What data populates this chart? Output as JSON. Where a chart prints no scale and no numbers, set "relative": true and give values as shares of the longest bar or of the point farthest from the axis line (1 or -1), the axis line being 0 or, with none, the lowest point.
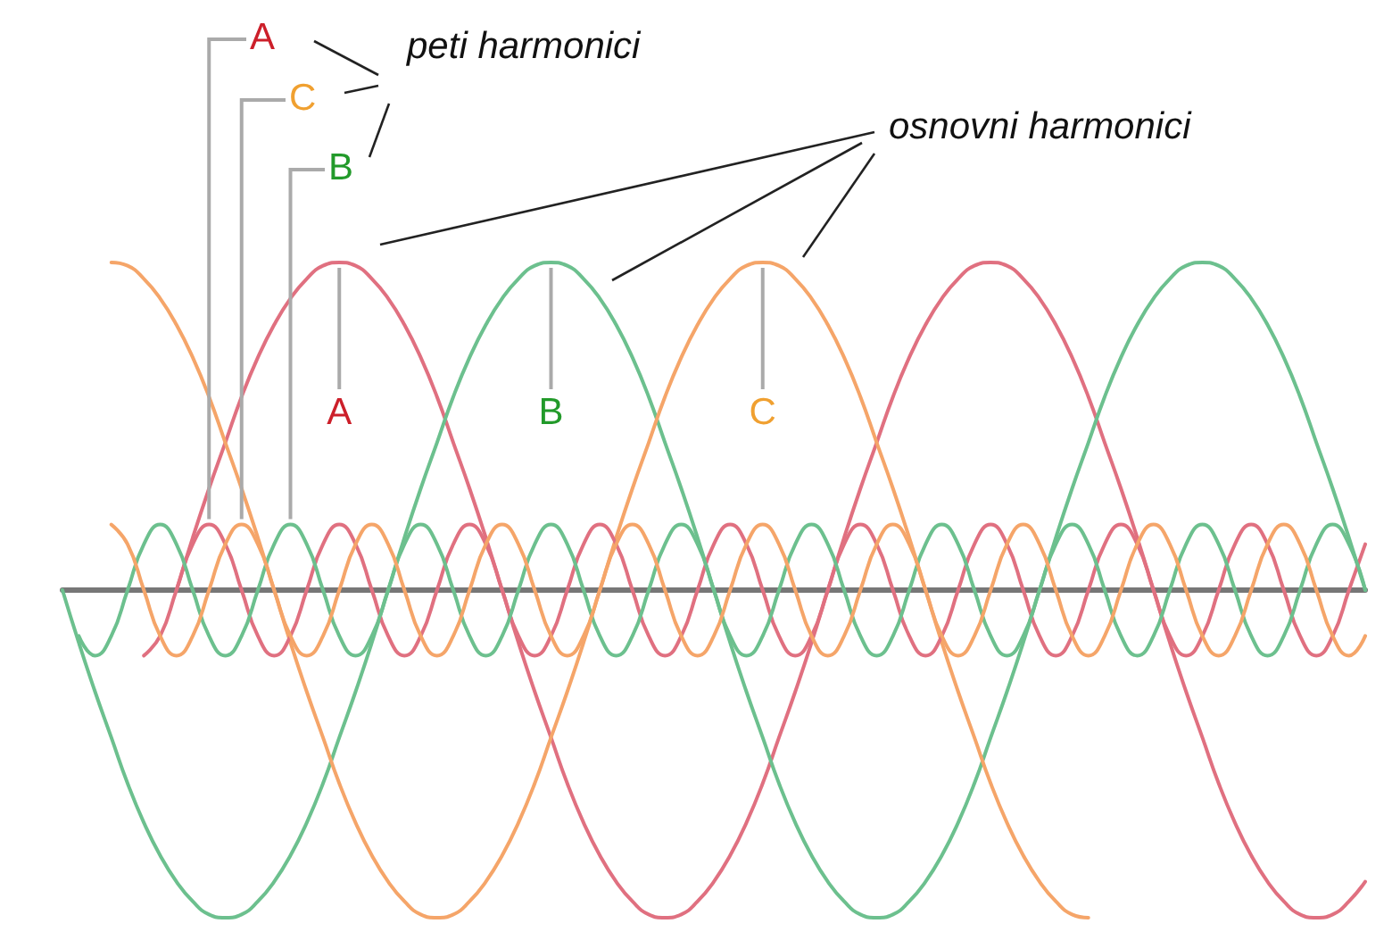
{
  "chart_data": {
    "type": "line",
    "relative": true,
    "categories": [
      null,
      null,
      null,
      null,
      null,
      null,
      null,
      null,
      null,
      null,
      null,
      null,
      null,
      null,
      null,
      null,
      null,
      null,
      null,
      null,
      null,
      null,
      null,
      null,
      null,
      null,
      null,
      null,
      null,
      null,
      null,
      null,
      null,
      null,
      null,
      null,
      null,
      null,
      null,
      null,
      null,
      null,
      null,
      null,
      null,
      null,
      null,
      null,
      null,
      null,
      null,
      null,
      null,
      null,
      null,
      null,
      null,
      null,
      null,
      null,
      null,
      null,
      null,
      null,
      null,
      null,
      null,
      null,
      null,
      null,
      null,
      null,
      null,
      null,
      null,
      null,
      null,
      null,
      null,
      null,
      null
    ],
    "series": [
      {
        "color": "#e07080",
        "values": [
          null,
          null,
          null,
          null,
          null,
          null,
          null,
          0,
          0.16,
          0.31,
          0.45,
          0.59,
          0.71,
          0.81,
          0.89,
          0.95,
          0.99,
          1,
          0.99,
          0.95,
          0.89,
          0.81,
          0.71,
          0.59,
          0.45,
          0.31,
          0.16,
          0,
          -0.16,
          -0.31,
          -0.45,
          -0.59,
          -0.71,
          -0.81,
          -0.89,
          -0.95,
          -0.99,
          -1,
          -0.99,
          -0.95,
          -0.89,
          -0.81,
          -0.71,
          -0.59,
          -0.45,
          -0.31,
          -0.16,
          0,
          0.16,
          0.31,
          0.45,
          0.59,
          0.71,
          0.81,
          0.89,
          0.95,
          0.99,
          1,
          0.99,
          0.95,
          0.89,
          0.81,
          0.71,
          0.59,
          0.45,
          0.31,
          0.16,
          0,
          -0.16,
          -0.31,
          -0.45,
          -0.59,
          -0.71,
          -0.81,
          -0.89,
          -0.95,
          -0.99,
          -1,
          -0.99,
          -0.95,
          -0.89
        ]
      },
      {
        "color": "#6cc08e",
        "values": [
          0,
          -0.16,
          -0.31,
          -0.45,
          -0.59,
          -0.71,
          -0.81,
          -0.89,
          -0.95,
          -0.99,
          -1,
          -0.99,
          -0.95,
          -0.89,
          -0.81,
          -0.71,
          -0.59,
          -0.45,
          -0.31,
          -0.16,
          0,
          0.16,
          0.31,
          0.45,
          0.59,
          0.71,
          0.81,
          0.89,
          0.95,
          0.99,
          1,
          0.99,
          0.95,
          0.89,
          0.81,
          0.71,
          0.59,
          0.45,
          0.31,
          0.16,
          0,
          -0.16,
          -0.31,
          -0.45,
          -0.59,
          -0.71,
          -0.81,
          -0.89,
          -0.95,
          -0.99,
          -1,
          -0.99,
          -0.95,
          -0.89,
          -0.81,
          -0.71,
          -0.59,
          -0.45,
          -0.31,
          -0.16,
          0,
          0.16,
          0.31,
          0.45,
          0.59,
          0.71,
          0.81,
          0.89,
          0.95,
          0.99,
          1,
          0.99,
          0.95,
          0.89,
          0.81,
          0.71,
          0.59,
          0.45,
          0.31,
          0.16,
          0
        ]
      },
      {
        "color": "#f5a569",
        "values": [
          null,
          null,
          null,
          1,
          0.99,
          0.95,
          0.89,
          0.81,
          0.71,
          0.59,
          0.45,
          0.31,
          0.16,
          0,
          -0.16,
          -0.31,
          -0.45,
          -0.59,
          -0.71,
          -0.81,
          -0.89,
          -0.95,
          -0.99,
          -1,
          -0.99,
          -0.95,
          -0.89,
          -0.81,
          -0.71,
          -0.59,
          -0.45,
          -0.31,
          -0.16,
          0,
          0.16,
          0.31,
          0.45,
          0.59,
          0.71,
          0.81,
          0.89,
          0.95,
          0.99,
          1,
          0.99,
          0.95,
          0.89,
          0.81,
          0.71,
          0.59,
          0.45,
          0.31,
          0.16,
          0,
          -0.16,
          -0.31,
          -0.45,
          -0.59,
          -0.71,
          -0.81,
          -0.89,
          -0.95,
          -0.99,
          -1,
          null,
          null,
          null,
          null,
          null,
          null,
          null,
          null,
          null,
          null,
          null,
          null,
          null,
          null,
          null,
          null,
          null
        ]
      },
      {
        "color": "#e07080",
        "values": [
          null,
          null,
          null,
          null,
          null,
          -0.2,
          -0.14,
          0,
          0.14,
          0.2,
          0.14,
          0,
          -0.14,
          -0.2,
          -0.14,
          0,
          0.14,
          0.2,
          0.14,
          0,
          -0.14,
          -0.2,
          -0.14,
          0,
          0.14,
          0.2,
          0.14,
          0,
          -0.14,
          -0.2,
          -0.14,
          0,
          0.14,
          0.2,
          0.14,
          0,
          -0.14,
          -0.2,
          -0.14,
          0,
          0.14,
          0.2,
          0.14,
          0,
          -0.14,
          -0.2,
          -0.14,
          0,
          0.14,
          0.2,
          0.14,
          0,
          -0.14,
          -0.2,
          -0.14,
          0,
          0.14,
          0.2,
          0.14,
          0,
          -0.14,
          -0.2,
          -0.14,
          0,
          0.14,
          0.2,
          0.14,
          0,
          -0.14,
          -0.2,
          -0.14,
          0,
          0.14,
          0.2,
          0.14,
          0,
          -0.14,
          -0.2,
          -0.14,
          0,
          0.14
        ]
      },
      {
        "color": "#6cc08e",
        "values": [
          null,
          -0.14,
          -0.2,
          -0.14,
          0,
          0.14,
          0.2,
          0.14,
          0,
          -0.14,
          -0.2,
          -0.14,
          0,
          0.14,
          0.2,
          0.14,
          0,
          -0.14,
          -0.2,
          -0.14,
          0,
          0.14,
          0.2,
          0.14,
          0,
          -0.14,
          -0.2,
          -0.14,
          0,
          0.14,
          0.2,
          0.14,
          0,
          -0.14,
          -0.2,
          -0.14,
          0,
          0.14,
          0.2,
          0.14,
          0,
          -0.14,
          -0.2,
          -0.14,
          0,
          0.14,
          0.2,
          0.14,
          0,
          -0.14,
          -0.2,
          -0.14,
          0,
          0.14,
          0.2,
          0.14,
          0,
          -0.14,
          -0.2,
          -0.14,
          0,
          0.14,
          0.2,
          0.14,
          0,
          -0.14,
          -0.2,
          -0.14,
          0,
          0.14,
          0.2,
          0.14,
          0,
          -0.14,
          -0.2,
          -0.14,
          0,
          0.14,
          0.2,
          0.14,
          0
        ]
      },
      {
        "color": "#f5a569",
        "values": [
          null,
          null,
          null,
          0.2,
          0.14,
          0,
          -0.14,
          -0.2,
          -0.14,
          0,
          0.14,
          0.2,
          0.14,
          0,
          -0.14,
          -0.2,
          -0.14,
          0,
          0.14,
          0.2,
          0.14,
          0,
          -0.14,
          -0.2,
          -0.14,
          0,
          0.14,
          0.2,
          0.14,
          0,
          -0.14,
          -0.2,
          -0.14,
          0,
          0.14,
          0.2,
          0.14,
          0,
          -0.14,
          -0.2,
          -0.14,
          0,
          0.14,
          0.2,
          0.14,
          0,
          -0.14,
          -0.2,
          -0.14,
          0,
          0.14,
          0.2,
          0.14,
          0,
          -0.14,
          -0.2,
          -0.14,
          0,
          0.14,
          0.2,
          0.14,
          0,
          -0.14,
          -0.2,
          -0.14,
          0,
          0.14,
          0.2,
          0.14,
          0,
          -0.14,
          -0.2,
          -0.14,
          0,
          0.14,
          0.2,
          0.14,
          0,
          -0.14,
          -0.2,
          -0.14
        ]
      }
    ],
    "annotations": [
      "A",
      "C",
      "B",
      "peti harmonici",
      "osnovni harmonici",
      "A",
      "B",
      "C"
    ]
  }
}
